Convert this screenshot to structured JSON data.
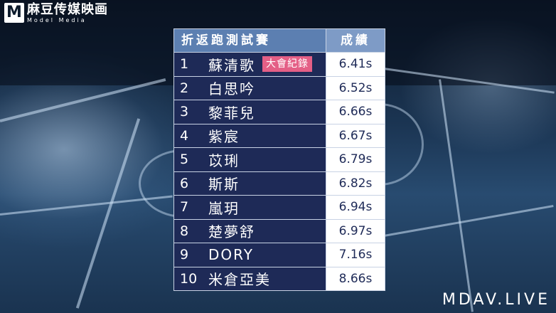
{
  "logo": {
    "mark": "M",
    "cn": "麻豆传媒映画",
    "en": "Model Media"
  },
  "watermark": "MDAV.LIVE",
  "table": {
    "event_header": "折返跑測試賽",
    "result_header": "成績",
    "record_badge": "大會紀錄",
    "rows": [
      {
        "rank": "1",
        "name": "蘇清歌",
        "result": "6.41s",
        "record": true
      },
      {
        "rank": "2",
        "name": "白思吟",
        "result": "6.52s"
      },
      {
        "rank": "3",
        "name": "黎菲兒",
        "result": "6.66s"
      },
      {
        "rank": "4",
        "name": "紫宸",
        "result": "6.67s"
      },
      {
        "rank": "5",
        "name": "苡琍",
        "result": "6.79s"
      },
      {
        "rank": "6",
        "name": "斯斯",
        "result": "6.82s"
      },
      {
        "rank": "7",
        "name": "嵐玥",
        "result": "6.94s"
      },
      {
        "rank": "8",
        "name": "楚夢舒",
        "result": "6.97s"
      },
      {
        "rank": "9",
        "name": "DORY",
        "result": "7.16s"
      },
      {
        "rank": "10",
        "name": "米倉亞美",
        "result": "8.66s"
      }
    ]
  }
}
